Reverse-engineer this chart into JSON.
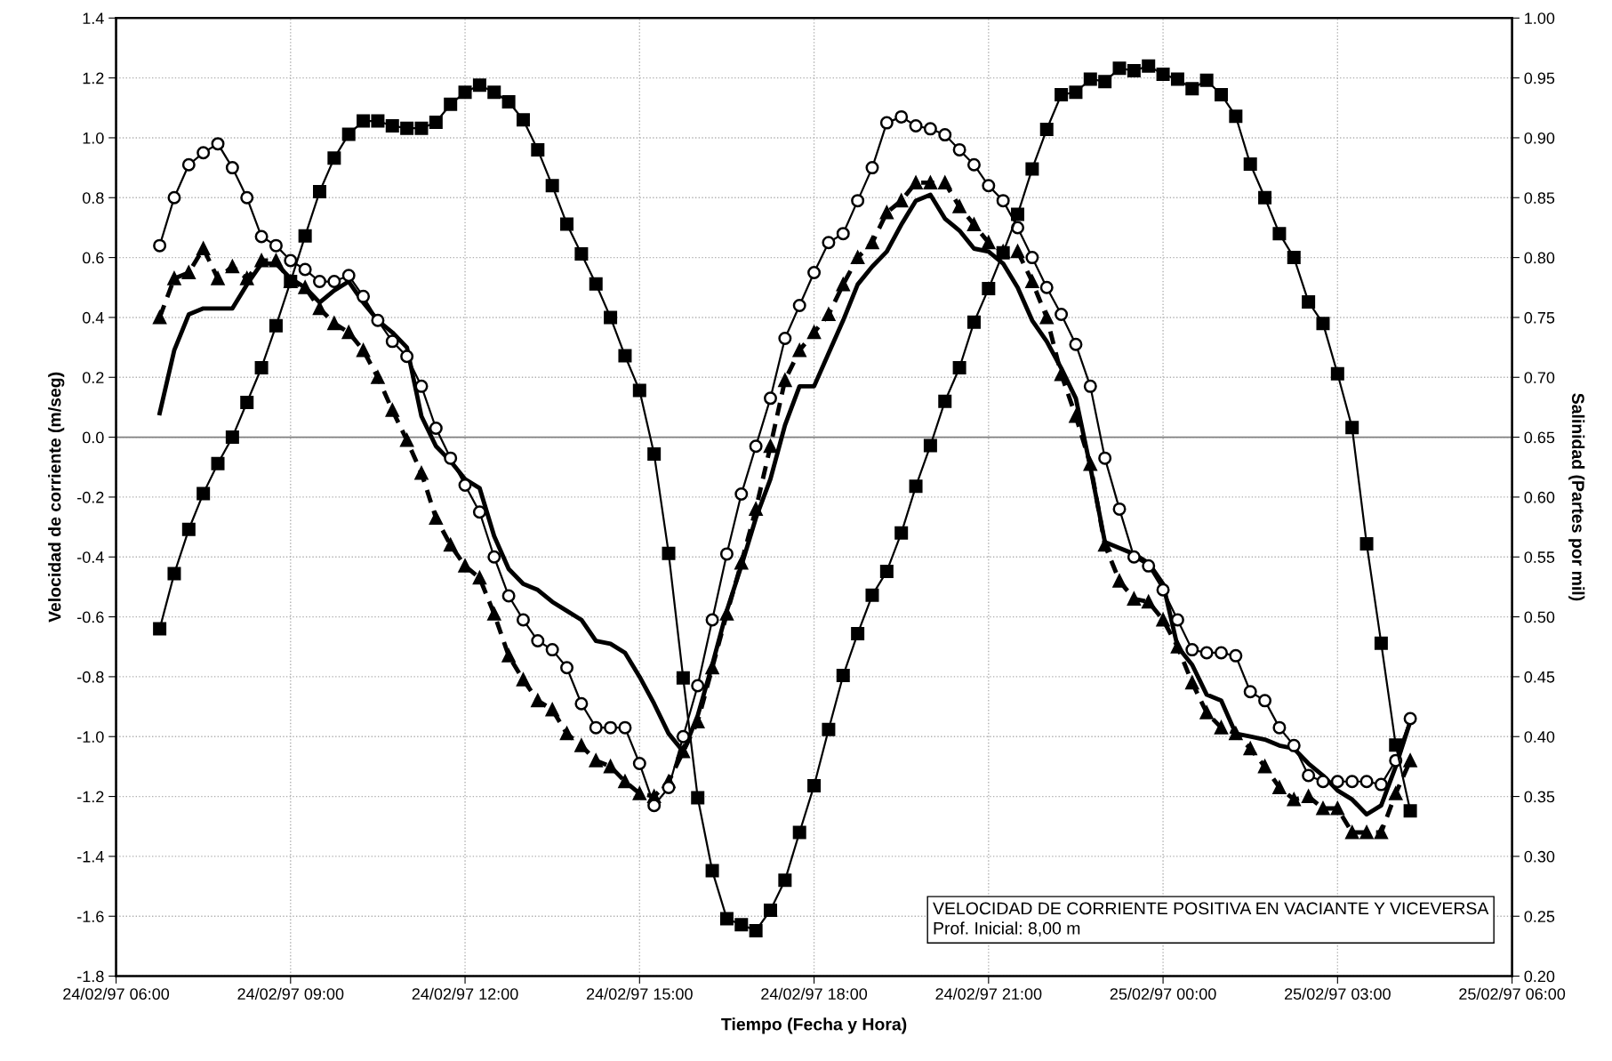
{
  "chart_data": {
    "type": "line",
    "xlabel": "Tiempo (Fecha y Hora)",
    "ylabel": "Velocidad de corriente (m/seg)",
    "y2label": "Salinidad (Partes por mil)",
    "x": [
      "1997-02-24T06:45",
      "1997-02-24T07:00",
      "1997-02-24T07:15",
      "1997-02-24T07:30",
      "1997-02-24T07:45",
      "1997-02-24T08:00",
      "1997-02-24T08:15",
      "1997-02-24T08:30",
      "1997-02-24T08:45",
      "1997-02-24T09:00",
      "1997-02-24T09:15",
      "1997-02-24T09:30",
      "1997-02-24T09:45",
      "1997-02-24T10:00",
      "1997-02-24T10:15",
      "1997-02-24T10:30",
      "1997-02-24T10:45",
      "1997-02-24T11:00",
      "1997-02-24T11:15",
      "1997-02-24T11:30",
      "1997-02-24T11:45",
      "1997-02-24T12:00",
      "1997-02-24T12:15",
      "1997-02-24T12:30",
      "1997-02-24T12:45",
      "1997-02-24T13:00",
      "1997-02-24T13:15",
      "1997-02-24T13:30",
      "1997-02-24T13:45",
      "1997-02-24T14:00",
      "1997-02-24T14:15",
      "1997-02-24T14:30",
      "1997-02-24T14:45",
      "1997-02-24T15:00",
      "1997-02-24T15:15",
      "1997-02-24T15:30",
      "1997-02-24T15:45",
      "1997-02-24T16:00",
      "1997-02-24T16:15",
      "1997-02-24T16:30",
      "1997-02-24T16:45",
      "1997-02-24T17:00",
      "1997-02-24T17:15",
      "1997-02-24T17:30",
      "1997-02-24T17:45",
      "1997-02-24T18:00",
      "1997-02-24T18:15",
      "1997-02-24T18:30",
      "1997-02-24T18:45",
      "1997-02-24T19:00",
      "1997-02-24T19:15",
      "1997-02-24T19:30",
      "1997-02-24T19:45",
      "1997-02-24T20:00",
      "1997-02-24T20:15",
      "1997-02-24T20:30",
      "1997-02-24T20:45",
      "1997-02-24T21:00",
      "1997-02-24T21:15",
      "1997-02-24T21:30",
      "1997-02-24T21:45",
      "1997-02-24T22:00",
      "1997-02-24T22:15",
      "1997-02-24T22:30",
      "1997-02-24T22:45",
      "1997-02-24T23:00",
      "1997-02-24T23:15",
      "1997-02-24T23:30",
      "1997-02-24T23:45",
      "1997-02-25T00:00",
      "1997-02-25T00:15",
      "1997-02-25T00:30",
      "1997-02-25T00:45",
      "1997-02-25T01:00",
      "1997-02-25T01:15",
      "1997-02-25T01:30",
      "1997-02-25T01:45",
      "1997-02-25T02:00",
      "1997-02-25T02:15",
      "1997-02-25T02:30",
      "1997-02-25T02:45",
      "1997-02-25T03:00",
      "1997-02-25T03:15",
      "1997-02-25T03:30",
      "1997-02-25T03:45",
      "1997-02-25T04:00",
      "1997-02-25T04:15"
    ],
    "series": [
      {
        "color": "#000000",
        "marker": "none",
        "line_style": "solid",
        "values": [
          0.08,
          0.29,
          0.41,
          0.43,
          0.43,
          0.43,
          0.51,
          0.58,
          0.58,
          0.53,
          0.5,
          0.45,
          0.49,
          0.52,
          0.45,
          0.39,
          0.35,
          0.3,
          0.07,
          -0.03,
          -0.08,
          -0.14,
          -0.17,
          -0.33,
          -0.44,
          -0.49,
          -0.51,
          -0.55,
          -0.58,
          -0.61,
          -0.68,
          -0.69,
          -0.72,
          -0.8,
          -0.89,
          -0.99,
          -1.05,
          -0.93,
          -0.76,
          -0.58,
          -0.43,
          -0.27,
          -0.14,
          0.04,
          0.17,
          0.17,
          0.28,
          0.39,
          0.51,
          0.57,
          0.62,
          0.71,
          0.79,
          0.81,
          0.73,
          0.69,
          0.63,
          0.62,
          0.58,
          0.5,
          0.39,
          0.32,
          0.23,
          0.13,
          -0.1,
          -0.35,
          -0.37,
          -0.39,
          -0.42,
          -0.49,
          -0.7,
          -0.76,
          -0.86,
          -0.88,
          -0.99,
          -1.0,
          -1.01,
          -1.03,
          -1.04,
          -1.09,
          -1.13,
          -1.18,
          -1.21,
          -1.26,
          -1.23,
          -1.1,
          -0.95
        ]
      },
      {
        "color": "#000000",
        "marker": "triangle",
        "line_style": "dashed",
        "values": [
          0.4,
          0.53,
          0.55,
          0.63,
          0.53,
          0.57,
          0.53,
          0.59,
          0.59,
          0.52,
          0.5,
          0.43,
          0.38,
          0.35,
          0.29,
          0.2,
          0.09,
          -0.01,
          -0.12,
          -0.27,
          -0.36,
          -0.43,
          -0.47,
          -0.59,
          -0.73,
          -0.81,
          -0.88,
          -0.91,
          -0.99,
          -1.03,
          -1.08,
          -1.1,
          -1.15,
          -1.19,
          -1.2,
          -1.15,
          -1.05,
          -0.95,
          -0.77,
          -0.59,
          -0.42,
          -0.24,
          -0.03,
          0.19,
          0.29,
          0.35,
          0.41,
          0.51,
          0.6,
          0.65,
          0.75,
          0.79,
          0.85,
          0.85,
          0.85,
          0.77,
          0.71,
          0.65,
          0.62,
          0.62,
          0.52,
          0.4,
          0.21,
          0.07,
          -0.09,
          -0.36,
          -0.48,
          -0.54,
          -0.55,
          -0.61,
          -0.7,
          -0.82,
          -0.92,
          -0.97,
          -0.99,
          -1.04,
          -1.1,
          -1.17,
          -1.21,
          -1.2,
          -1.24,
          -1.24,
          -1.32,
          -1.32,
          -1.32,
          -1.19,
          -1.08
        ]
      },
      {
        "color": "#000000",
        "marker": "circle",
        "line_style": "solid",
        "values": [
          0.64,
          0.8,
          0.91,
          0.95,
          0.98,
          0.9,
          0.8,
          0.67,
          0.64,
          0.59,
          0.56,
          0.52,
          0.52,
          0.54,
          0.47,
          0.39,
          0.32,
          0.27,
          0.17,
          0.03,
          -0.07,
          -0.16,
          -0.25,
          -0.4,
          -0.53,
          -0.61,
          -0.68,
          -0.71,
          -0.77,
          -0.89,
          -0.97,
          -0.97,
          -0.97,
          -1.09,
          -1.23,
          -1.17,
          -1.0,
          -0.83,
          -0.61,
          -0.39,
          -0.19,
          -0.03,
          0.13,
          0.33,
          0.44,
          0.55,
          0.65,
          0.68,
          0.79,
          0.9,
          1.05,
          1.07,
          1.04,
          1.03,
          1.01,
          0.96,
          0.91,
          0.84,
          0.79,
          0.7,
          0.6,
          0.5,
          0.41,
          0.31,
          0.17,
          -0.07,
          -0.24,
          -0.4,
          -0.43,
          -0.51,
          -0.61,
          -0.71,
          -0.72,
          -0.72,
          -0.73,
          -0.85,
          -0.88,
          -0.97,
          -1.03,
          -1.13,
          -1.15,
          -1.15,
          -1.15,
          -1.15,
          -1.16,
          -1.08,
          -0.94
        ]
      },
      {
        "color": "#000000",
        "marker": "square",
        "line_style": "solid",
        "axis": "y2",
        "values": [
          0.49,
          0.536,
          0.573,
          0.603,
          0.628,
          0.65,
          0.679,
          0.708,
          0.743,
          0.78,
          0.818,
          0.855,
          0.883,
          0.903,
          0.914,
          0.914,
          0.91,
          0.908,
          0.908,
          0.913,
          0.928,
          0.938,
          0.944,
          0.938,
          0.93,
          0.915,
          0.89,
          0.86,
          0.828,
          0.803,
          0.778,
          0.75,
          0.718,
          0.689,
          0.636,
          0.553,
          0.449,
          0.349,
          0.288,
          0.248,
          0.243,
          0.238,
          0.255,
          0.28,
          0.32,
          0.359,
          0.406,
          0.451,
          0.486,
          0.518,
          0.538,
          0.57,
          0.609,
          0.643,
          0.68,
          0.708,
          0.746,
          0.774,
          0.804,
          0.836,
          0.874,
          0.907,
          0.936,
          0.938,
          0.949,
          0.947,
          0.958,
          0.956,
          0.96,
          0.953,
          0.949,
          0.941,
          0.948,
          0.936,
          0.918,
          0.878,
          0.85,
          0.82,
          0.8,
          0.763,
          0.745,
          0.703,
          0.658,
          0.561,
          0.478,
          0.393,
          0.338
        ]
      }
    ],
    "xlim": [
      "1997-02-24T06:00",
      "1997-02-25T06:00"
    ],
    "xticks": [
      {
        "value": "1997-02-24T06:00",
        "label": "24/02/97 06:00"
      },
      {
        "value": "1997-02-24T09:00",
        "label": "24/02/97 09:00"
      },
      {
        "value": "1997-02-24T12:00",
        "label": "24/02/97 12:00"
      },
      {
        "value": "1997-02-24T15:00",
        "label": "24/02/97 15:00"
      },
      {
        "value": "1997-02-24T18:00",
        "label": "24/02/97 18:00"
      },
      {
        "value": "1997-02-24T21:00",
        "label": "24/02/97 21:00"
      },
      {
        "value": "1997-02-25T00:00",
        "label": "25/02/97 00:00"
      },
      {
        "value": "1997-02-25T03:00",
        "label": "25/02/97 03:00"
      },
      {
        "value": "1997-02-25T06:00",
        "label": "25/02/97 06:00"
      }
    ],
    "ylim": [
      -1.8,
      1.4
    ],
    "yticks": [
      {
        "value": -1.8,
        "label": "-1.8"
      },
      {
        "value": -1.6,
        "label": "-1.6"
      },
      {
        "value": -1.4,
        "label": "-1.4"
      },
      {
        "value": -1.2,
        "label": "-1.2"
      },
      {
        "value": -1.0,
        "label": "-1.0"
      },
      {
        "value": -0.8,
        "label": "-0.8"
      },
      {
        "value": -0.6,
        "label": "-0.6"
      },
      {
        "value": -0.4,
        "label": "-0.4"
      },
      {
        "value": -0.2,
        "label": "-0.2"
      },
      {
        "value": 0,
        "label": "0.0"
      },
      {
        "value": 0.2,
        "label": "0.2"
      },
      {
        "value": 0.4,
        "label": "0.4"
      },
      {
        "value": 0.6,
        "label": "0.6"
      },
      {
        "value": 0.8,
        "label": "0.8"
      },
      {
        "value": 1.0,
        "label": "1.0"
      },
      {
        "value": 1.2,
        "label": "1.2"
      },
      {
        "value": 1.4,
        "label": "1.4"
      }
    ],
    "y2lim": [
      0.2,
      1.0
    ],
    "y2ticks": [
      {
        "value": 0.2,
        "label": "0.20"
      },
      {
        "value": 0.25,
        "label": "0.25"
      },
      {
        "value": 0.3,
        "label": "0.30"
      },
      {
        "value": 0.35,
        "label": "0.35"
      },
      {
        "value": 0.4,
        "label": "0.40"
      },
      {
        "value": 0.45,
        "label": "0.45"
      },
      {
        "value": 0.5,
        "label": "0.50"
      },
      {
        "value": 0.55,
        "label": "0.55"
      },
      {
        "value": 0.6,
        "label": "0.60"
      },
      {
        "value": 0.65,
        "label": "0.65"
      },
      {
        "value": 0.7,
        "label": "0.70"
      },
      {
        "value": 0.75,
        "label": "0.75"
      },
      {
        "value": 0.8,
        "label": "0.80"
      },
      {
        "value": 0.85,
        "label": "0.85"
      },
      {
        "value": 0.9,
        "label": "0.90"
      },
      {
        "value": 0.95,
        "label": "0.95"
      },
      {
        "value": 1.0,
        "label": "1.00"
      }
    ],
    "ref_lines": [
      {
        "axis": "y",
        "value": 0,
        "color": "#808080",
        "line_style": "solid"
      }
    ],
    "grid": true,
    "annotations": [
      "VELOCIDAD DE CORRIENTE POSITIVA EN VACIANTE Y VICEVERSA",
      "Prof. Inicial: 8,00 m"
    ]
  }
}
